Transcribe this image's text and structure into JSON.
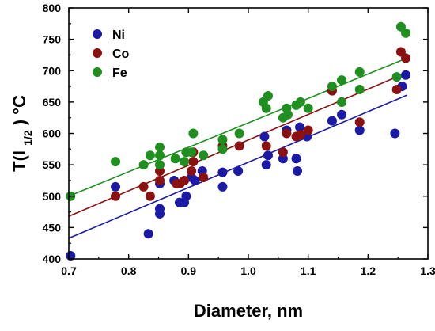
{
  "chart_data": {
    "type": "scatter",
    "xlabel": "Diameter, nm",
    "ylabel": {
      "prefix": "T(I",
      "sub": "1/2",
      "suffix": ")  °C"
    },
    "xlim": [
      0.7,
      1.3
    ],
    "ylim": [
      400,
      800
    ],
    "xticks": [
      0.7,
      0.8,
      0.9,
      1.0,
      1.1,
      1.2,
      1.3
    ],
    "xtick_labels": [
      "0.7",
      "0.8",
      "0.9",
      "1.0",
      "1.1",
      "1.2",
      "1.3"
    ],
    "yticks": [
      400,
      450,
      500,
      550,
      600,
      650,
      700,
      750,
      800
    ],
    "ytick_labels": [
      "400",
      "450",
      "500",
      "550",
      "600",
      "650",
      "700",
      "750",
      "800"
    ],
    "grid": false,
    "legend_position": "top-left",
    "series": [
      {
        "name": "Ni",
        "color": "#1a1aa6",
        "fit": {
          "x": [
            0.7,
            1.265
          ],
          "y": [
            433,
            661
          ]
        },
        "points": [
          [
            0.703,
            405
          ],
          [
            0.778,
            515
          ],
          [
            0.833,
            440
          ],
          [
            0.852,
            472
          ],
          [
            0.852,
            480
          ],
          [
            0.852,
            520
          ],
          [
            0.876,
            525
          ],
          [
            0.885,
            490
          ],
          [
            0.893,
            490
          ],
          [
            0.896,
            500
          ],
          [
            0.905,
            530
          ],
          [
            0.911,
            525
          ],
          [
            0.923,
            540
          ],
          [
            0.957,
            515
          ],
          [
            0.957,
            538
          ],
          [
            0.983,
            540
          ],
          [
            1.027,
            595
          ],
          [
            1.03,
            550
          ],
          [
            1.033,
            565
          ],
          [
            1.058,
            560
          ],
          [
            1.064,
            605
          ],
          [
            1.08,
            560
          ],
          [
            1.082,
            540
          ],
          [
            1.086,
            610
          ],
          [
            1.098,
            595
          ],
          [
            1.14,
            620
          ],
          [
            1.156,
            630
          ],
          [
            1.186,
            605
          ],
          [
            1.245,
            600
          ],
          [
            1.257,
            675
          ],
          [
            1.263,
            693
          ]
        ]
      },
      {
        "name": "Co",
        "color": "#8b1111",
        "fit": {
          "x": [
            0.7,
            1.265
          ],
          "y": [
            468,
            697
          ]
        },
        "points": [
          [
            0.778,
            500
          ],
          [
            0.825,
            515
          ],
          [
            0.836,
            500
          ],
          [
            0.852,
            525
          ],
          [
            0.852,
            540
          ],
          [
            0.88,
            520
          ],
          [
            0.886,
            520
          ],
          [
            0.893,
            525
          ],
          [
            0.905,
            540
          ],
          [
            0.908,
            555
          ],
          [
            0.908,
            570
          ],
          [
            0.925,
            530
          ],
          [
            0.957,
            580
          ],
          [
            0.985,
            580
          ],
          [
            1.03,
            580
          ],
          [
            1.058,
            570
          ],
          [
            1.064,
            600
          ],
          [
            1.08,
            595
          ],
          [
            1.087,
            598
          ],
          [
            1.1,
            605
          ],
          [
            1.14,
            668
          ],
          [
            1.156,
            650
          ],
          [
            1.186,
            618
          ],
          [
            1.248,
            670
          ],
          [
            1.255,
            730
          ],
          [
            1.263,
            720
          ]
        ]
      },
      {
        "name": "Fe",
        "color": "#1f8f1f",
        "fit": {
          "x": [
            0.7,
            1.265
          ],
          "y": [
            500,
            720
          ]
        },
        "points": [
          [
            0.703,
            500
          ],
          [
            0.778,
            555
          ],
          [
            0.825,
            550
          ],
          [
            0.836,
            565
          ],
          [
            0.852,
            565
          ],
          [
            0.852,
            578
          ],
          [
            0.852,
            550
          ],
          [
            0.878,
            560
          ],
          [
            0.893,
            555
          ],
          [
            0.896,
            570
          ],
          [
            0.905,
            570
          ],
          [
            0.908,
            600
          ],
          [
            0.925,
            565
          ],
          [
            0.957,
            590
          ],
          [
            0.957,
            575
          ],
          [
            0.985,
            600
          ],
          [
            1.025,
            650
          ],
          [
            1.03,
            640
          ],
          [
            1.033,
            660
          ],
          [
            1.058,
            625
          ],
          [
            1.064,
            640
          ],
          [
            1.066,
            630
          ],
          [
            1.08,
            645
          ],
          [
            1.087,
            650
          ],
          [
            1.1,
            640
          ],
          [
            1.14,
            675
          ],
          [
            1.156,
            685
          ],
          [
            1.156,
            650
          ],
          [
            1.186,
            698
          ],
          [
            1.186,
            670
          ],
          [
            1.248,
            690
          ],
          [
            1.255,
            770
          ],
          [
            1.263,
            760
          ]
        ]
      }
    ]
  }
}
